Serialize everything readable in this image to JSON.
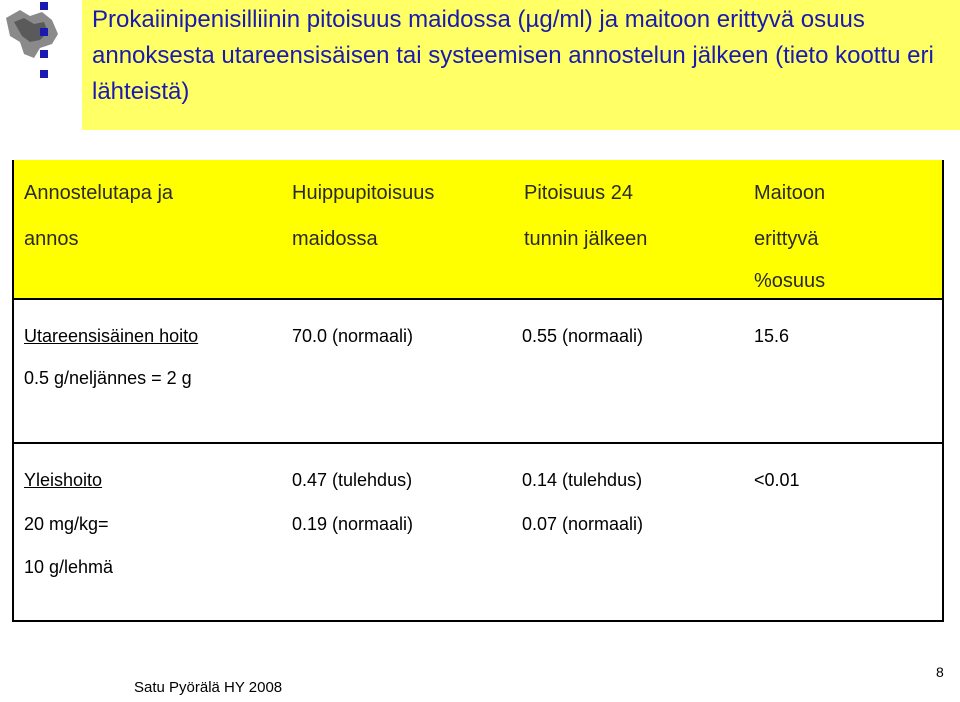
{
  "title": "Prokaiinipenisilliinin pitoisuus maidossa (µg/ml) ja maitoon erittyvä osuus annoksesta utareensisäisen tai systeemisen annostelun jälkeen (tieto koottu eri lähteistä)",
  "table": {
    "headers": [
      [
        "Annostelutapa ja",
        "annos"
      ],
      [
        "Huippupitoisuus",
        "maidossa"
      ],
      [
        "Pitoisuus 24",
        "tunnin jälkeen"
      ],
      [
        "Maitoon",
        "erittyvä",
        "%osuus"
      ]
    ],
    "rows": [
      {
        "col1": [
          "Utareensisäinen hoito",
          "0.5 g/neljännes = 2 g"
        ],
        "col2": [
          "70.0 (normaali)"
        ],
        "col3": [
          "0.55 (normaali)"
        ],
        "col4": [
          "15.6"
        ]
      },
      {
        "col1": [
          "Yleishoito",
          "20 mg/kg=",
          "10 g/lehmä"
        ],
        "col2": [
          "0.47 (tulehdus)",
          "0.19 (normaali)"
        ],
        "col3": [
          "0.14 (tulehdus)",
          "0.07 (normaali)"
        ],
        "col4": [
          "<0.01"
        ]
      }
    ]
  },
  "footer": "Satu  Pyörälä HY 2008",
  "page_number": "8",
  "colors": {
    "title_text": "#1a1ab0",
    "title_band": "#ffff66",
    "header_fill": "#ffff00"
  }
}
